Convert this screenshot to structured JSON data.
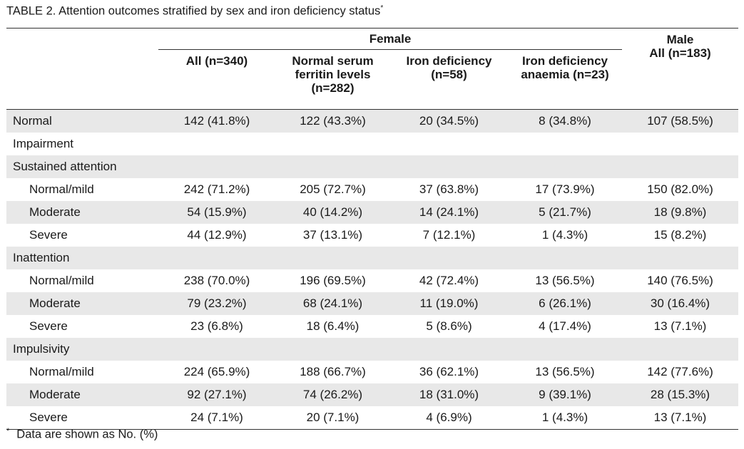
{
  "caption": {
    "title": "TABLE 2. Attention outcomes stratified by sex and iron deficiency status",
    "marker": "*"
  },
  "header": {
    "female": "Female",
    "male_line1": "Male",
    "male_line2": "All (n=183)",
    "col_all": "All (n=340)",
    "col_normal": "Normal serum ferritin levels (n=282)",
    "col_iron_def": "Iron deficiency (n=58)",
    "col_ida": "Iron deficiency anaemia (n=23)"
  },
  "rows": [
    {
      "label": "Normal",
      "c1": "142 (41.8%)",
      "c2": "122 (43.3%)",
      "c3": "20 (34.5%)",
      "c4": "8 (34.8%)",
      "c5": "107 (58.5%)"
    },
    {
      "label": "Impairment",
      "c1": "",
      "c2": "",
      "c3": "",
      "c4": "",
      "c5": ""
    },
    {
      "label": "Sustained attention",
      "c1": "",
      "c2": "",
      "c3": "",
      "c4": "",
      "c5": ""
    },
    {
      "label": "Normal/mild",
      "c1": "242 (71.2%)",
      "c2": "205 (72.7%)",
      "c3": "37 (63.8%)",
      "c4": "17 (73.9%)",
      "c5": "150 (82.0%)"
    },
    {
      "label": "Moderate",
      "c1": "54 (15.9%)",
      "c2": "40 (14.2%)",
      "c3": "14 (24.1%)",
      "c4": "5 (21.7%)",
      "c5": "18 (9.8%)"
    },
    {
      "label": "Severe",
      "c1": "44 (12.9%)",
      "c2": "37 (13.1%)",
      "c3": "7 (12.1%)",
      "c4": "1 (4.3%)",
      "c5": "15 (8.2%)"
    },
    {
      "label": "Inattention",
      "c1": "",
      "c2": "",
      "c3": "",
      "c4": "",
      "c5": ""
    },
    {
      "label": "Normal/mild",
      "c1": "238 (70.0%)",
      "c2": "196 (69.5%)",
      "c3": "42 (72.4%)",
      "c4": "13 (56.5%)",
      "c5": "140 (76.5%)"
    },
    {
      "label": "Moderate",
      "c1": "79 (23.2%)",
      "c2": "68 (24.1%)",
      "c3": "11 (19.0%)",
      "c4": "6 (26.1%)",
      "c5": "30 (16.4%)"
    },
    {
      "label": "Severe",
      "c1": "23 (6.8%)",
      "c2": "18 (6.4%)",
      "c3": "5 (8.6%)",
      "c4": "4 (17.4%)",
      "c5": "13 (7.1%)"
    },
    {
      "label": "Impulsivity",
      "c1": "",
      "c2": "",
      "c3": "",
      "c4": "",
      "c5": ""
    },
    {
      "label": "Normal/mild",
      "c1": "224 (65.9%)",
      "c2": "188 (66.7%)",
      "c3": "36 (62.1%)",
      "c4": "13 (56.5%)",
      "c5": "142 (77.6%)"
    },
    {
      "label": "Moderate",
      "c1": "92 (27.1%)",
      "c2": "74 (26.2%)",
      "c3": "18 (31.0%)",
      "c4": "9 (39.1%)",
      "c5": "28 (15.3%)"
    },
    {
      "label": "Severe",
      "c1": "24 (7.1%)",
      "c2": "20 (7.1%)",
      "c3": "4 (6.9%)",
      "c4": "1 (4.3%)",
      "c5": "13 (7.1%)"
    }
  ],
  "footnote": {
    "marker": "*",
    "text": "Data are shown as No. (%)"
  }
}
